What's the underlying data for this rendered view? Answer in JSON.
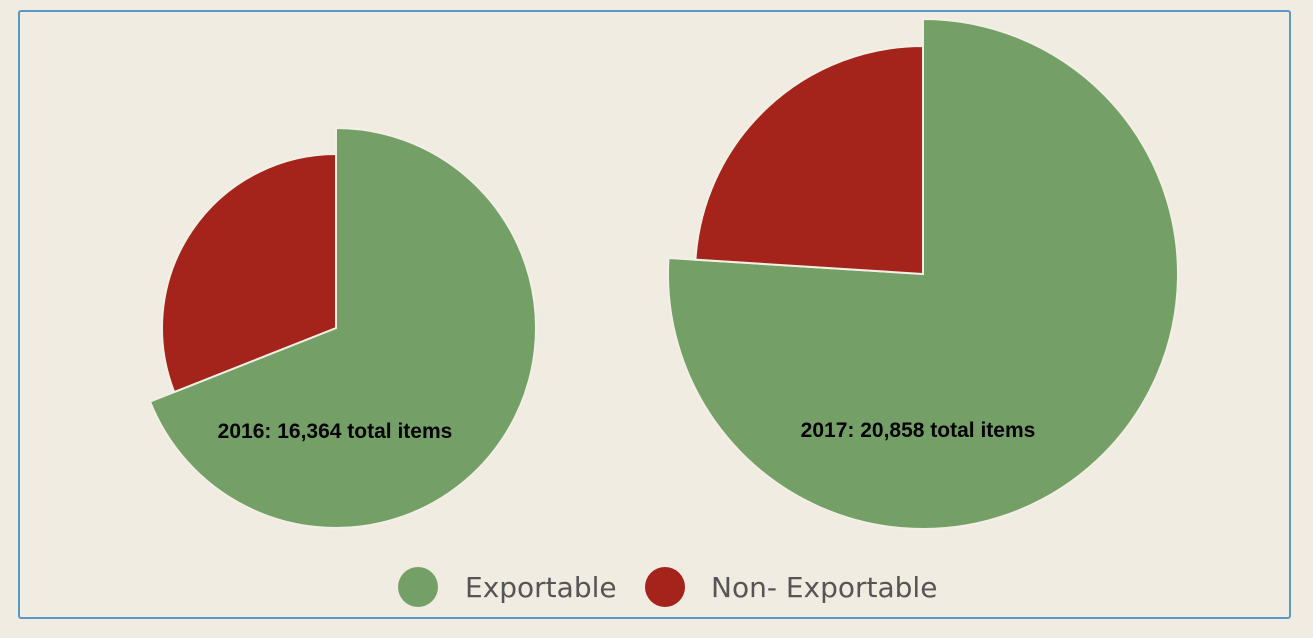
{
  "chart_data": {
    "type": "pie",
    "legend": {
      "position": "bottom",
      "entries": [
        {
          "label": "Exportable",
          "color": "#74a067"
        },
        {
          "label": "Non- Exportable",
          "color": "#a4231b"
        }
      ]
    },
    "pies": [
      {
        "label": "2016: 16,364 total items",
        "slices": [
          {
            "name": "Exportable",
            "share": 0.69
          },
          {
            "name": "Non- Exportable",
            "share": 0.31
          }
        ]
      },
      {
        "label": "2017: 20,858 total items",
        "slices": [
          {
            "name": "Exportable",
            "share": 0.76
          },
          {
            "name": "Non- Exportable",
            "share": 0.24
          }
        ]
      }
    ]
  }
}
